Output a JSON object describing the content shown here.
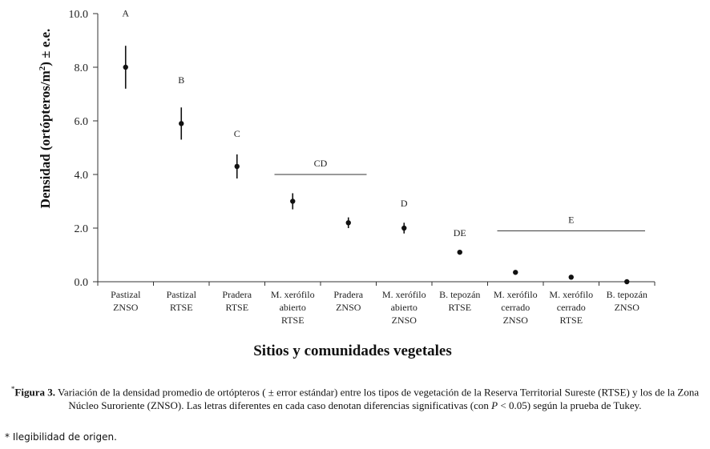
{
  "chart_data": {
    "type": "scatter",
    "ylabel": "Densidad (ortópteros/m²) ± e.e.",
    "ylabel_parts": [
      "Densidad (ortópteros/m",
      "2",
      ") ± e.e."
    ],
    "xlabel": "Sitios y comunidades vegetales",
    "ylim": [
      0,
      10
    ],
    "yticks": [
      "0.0",
      "2.0",
      "4.0",
      "6.0",
      "8.0",
      "10.0"
    ],
    "categories": [
      [
        "Pastizal",
        "ZNSO"
      ],
      [
        "Pastizal",
        "RTSE"
      ],
      [
        "Pradera",
        "RTSE"
      ],
      [
        "M. xerófilo",
        "abierto",
        "RTSE"
      ],
      [
        "Pradera",
        "ZNSO"
      ],
      [
        "M. xerófilo",
        "abierto",
        "ZNSO"
      ],
      [
        "B. tepozán",
        "RTSE"
      ],
      [
        "M. xerófilo",
        "cerrado",
        "ZNSO"
      ],
      [
        "M. xerófilo",
        "cerrado",
        "RTSE"
      ],
      [
        "B. tepozán",
        "ZNSO"
      ]
    ],
    "values": [
      8.0,
      5.9,
      4.3,
      3.0,
      2.2,
      2.0,
      1.1,
      0.35,
      0.17,
      0.0
    ],
    "errors": [
      0.8,
      0.6,
      0.45,
      0.3,
      0.2,
      0.2,
      0.05,
      0.05,
      0.04,
      0.02
    ],
    "groups": [
      {
        "label": "A",
        "from": 0,
        "to": 0,
        "y": 9.9,
        "line": false
      },
      {
        "label": "B",
        "from": 1,
        "to": 1,
        "y": 7.4,
        "line": false
      },
      {
        "label": "C",
        "from": 2,
        "to": 2,
        "y": 5.4,
        "line": false
      },
      {
        "label": "CD",
        "from": 3,
        "to": 4,
        "y": 4.0,
        "line": true
      },
      {
        "label": "D",
        "from": 5,
        "to": 5,
        "y": 2.8,
        "line": false
      },
      {
        "label": "DE",
        "from": 6,
        "to": 6,
        "y": 1.7,
        "line": false
      },
      {
        "label": "E",
        "from": 7,
        "to": 9,
        "y": 1.9,
        "line": true
      }
    ]
  },
  "caption": {
    "marker": "*",
    "figure_label": "Figura 3.",
    "text_1": " Variación de la densidad promedio de ortópteros ( ± error estándar) entre los tipos de vegetación de la Reserva Territorial Sureste (RTSE) y los de la Zona Núcleo Suroriente (ZNSO). Las letras diferentes en cada caso denotan diferencias significativas (con ",
    "p_symbol": "P",
    "text_2": " < 0.05) según la prueba de Tukey."
  },
  "footnote": "* Ilegibilidad de origen."
}
